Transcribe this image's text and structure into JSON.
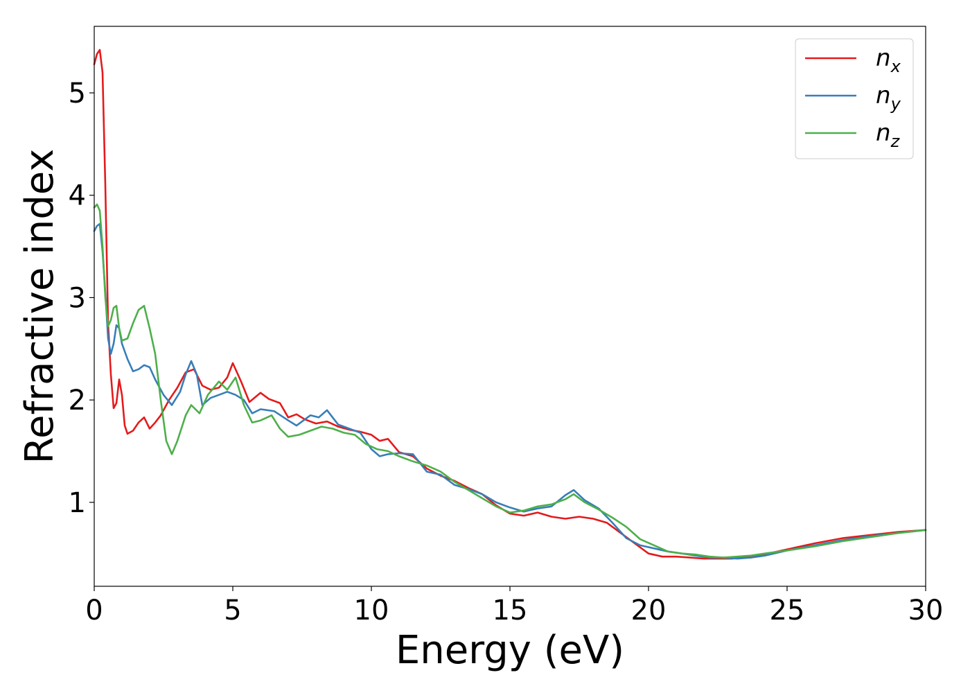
{
  "chart_data": {
    "type": "line",
    "title": "",
    "xlabel": "Energy (eV)",
    "ylabel": "Refractive index",
    "xlim": [
      0,
      30
    ],
    "ylim": [
      0.18,
      5.65
    ],
    "xticks": [
      "0",
      "5",
      "10",
      "15",
      "20",
      "25",
      "30"
    ],
    "yticks": [
      "1",
      "2",
      "3",
      "4",
      "5"
    ],
    "grid": false,
    "legend_position": "top-right",
    "series": [
      {
        "name": "n",
        "subscript": "x",
        "color": "#e41a1c",
        "points": [
          [
            0,
            5.28
          ],
          [
            0.1,
            5.38
          ],
          [
            0.2,
            5.42
          ],
          [
            0.3,
            5.2
          ],
          [
            0.4,
            4.1
          ],
          [
            0.5,
            2.75
          ],
          [
            0.6,
            2.25
          ],
          [
            0.7,
            1.92
          ],
          [
            0.8,
            1.97
          ],
          [
            0.9,
            2.2
          ],
          [
            1.0,
            2.05
          ],
          [
            1.1,
            1.75
          ],
          [
            1.2,
            1.67
          ],
          [
            1.4,
            1.7
          ],
          [
            1.6,
            1.78
          ],
          [
            1.8,
            1.83
          ],
          [
            2.0,
            1.72
          ],
          [
            2.2,
            1.78
          ],
          [
            2.4,
            1.85
          ],
          [
            2.7,
            2.0
          ],
          [
            3.0,
            2.12
          ],
          [
            3.3,
            2.27
          ],
          [
            3.6,
            2.3
          ],
          [
            3.9,
            2.14
          ],
          [
            4.2,
            2.1
          ],
          [
            4.5,
            2.12
          ],
          [
            4.8,
            2.22
          ],
          [
            5.0,
            2.36
          ],
          [
            5.3,
            2.18
          ],
          [
            5.6,
            1.98
          ],
          [
            6.0,
            2.07
          ],
          [
            6.3,
            2.01
          ],
          [
            6.7,
            1.97
          ],
          [
            7.0,
            1.83
          ],
          [
            7.3,
            1.86
          ],
          [
            7.6,
            1.81
          ],
          [
            8.0,
            1.77
          ],
          [
            8.4,
            1.79
          ],
          [
            8.8,
            1.74
          ],
          [
            9.2,
            1.71
          ],
          [
            9.6,
            1.69
          ],
          [
            10.0,
            1.66
          ],
          [
            10.3,
            1.6
          ],
          [
            10.6,
            1.62
          ],
          [
            11.0,
            1.49
          ],
          [
            11.5,
            1.45
          ],
          [
            12.0,
            1.33
          ],
          [
            12.5,
            1.26
          ],
          [
            13.0,
            1.21
          ],
          [
            13.5,
            1.14
          ],
          [
            14.0,
            1.08
          ],
          [
            14.5,
            0.97
          ],
          [
            15.0,
            0.89
          ],
          [
            15.5,
            0.87
          ],
          [
            16.0,
            0.9
          ],
          [
            16.5,
            0.86
          ],
          [
            17.0,
            0.84
          ],
          [
            17.5,
            0.86
          ],
          [
            18.0,
            0.84
          ],
          [
            18.5,
            0.8
          ],
          [
            19.0,
            0.7
          ],
          [
            19.5,
            0.6
          ],
          [
            20.0,
            0.5
          ],
          [
            20.5,
            0.47
          ],
          [
            21.0,
            0.47
          ],
          [
            21.5,
            0.46
          ],
          [
            22.0,
            0.45
          ],
          [
            22.5,
            0.45
          ],
          [
            23.0,
            0.45
          ],
          [
            23.5,
            0.46
          ],
          [
            24.0,
            0.48
          ],
          [
            25.0,
            0.54
          ],
          [
            26.0,
            0.6
          ],
          [
            27.0,
            0.65
          ],
          [
            28.0,
            0.68
          ],
          [
            29.0,
            0.71
          ],
          [
            30.0,
            0.73
          ]
        ]
      },
      {
        "name": "n",
        "subscript": "y",
        "color": "#377eb8",
        "points": [
          [
            0,
            3.65
          ],
          [
            0.1,
            3.7
          ],
          [
            0.2,
            3.72
          ],
          [
            0.3,
            3.45
          ],
          [
            0.4,
            3.05
          ],
          [
            0.5,
            2.6
          ],
          [
            0.6,
            2.45
          ],
          [
            0.7,
            2.55
          ],
          [
            0.8,
            2.73
          ],
          [
            0.9,
            2.7
          ],
          [
            1.0,
            2.55
          ],
          [
            1.2,
            2.4
          ],
          [
            1.4,
            2.28
          ],
          [
            1.6,
            2.3
          ],
          [
            1.8,
            2.34
          ],
          [
            2.0,
            2.32
          ],
          [
            2.2,
            2.2
          ],
          [
            2.5,
            2.05
          ],
          [
            2.8,
            1.95
          ],
          [
            3.1,
            2.08
          ],
          [
            3.3,
            2.25
          ],
          [
            3.5,
            2.38
          ],
          [
            3.7,
            2.25
          ],
          [
            3.9,
            1.95
          ],
          [
            4.2,
            2.02
          ],
          [
            4.5,
            2.05
          ],
          [
            4.8,
            2.08
          ],
          [
            5.1,
            2.05
          ],
          [
            5.4,
            2.0
          ],
          [
            5.7,
            1.87
          ],
          [
            6.0,
            1.91
          ],
          [
            6.5,
            1.89
          ],
          [
            7.0,
            1.8
          ],
          [
            7.3,
            1.75
          ],
          [
            7.8,
            1.85
          ],
          [
            8.1,
            1.83
          ],
          [
            8.4,
            1.9
          ],
          [
            8.8,
            1.76
          ],
          [
            9.2,
            1.72
          ],
          [
            9.6,
            1.68
          ],
          [
            10.0,
            1.52
          ],
          [
            10.3,
            1.45
          ],
          [
            10.6,
            1.47
          ],
          [
            11.0,
            1.48
          ],
          [
            11.5,
            1.47
          ],
          [
            12.0,
            1.3
          ],
          [
            12.5,
            1.27
          ],
          [
            13.0,
            1.17
          ],
          [
            13.5,
            1.13
          ],
          [
            14.0,
            1.08
          ],
          [
            14.5,
            1.0
          ],
          [
            15.0,
            0.95
          ],
          [
            15.5,
            0.91
          ],
          [
            16.0,
            0.94
          ],
          [
            16.5,
            0.96
          ],
          [
            17.0,
            1.07
          ],
          [
            17.3,
            1.12
          ],
          [
            17.7,
            1.02
          ],
          [
            18.2,
            0.94
          ],
          [
            18.7,
            0.8
          ],
          [
            19.2,
            0.65
          ],
          [
            19.7,
            0.58
          ],
          [
            20.2,
            0.55
          ],
          [
            20.7,
            0.52
          ],
          [
            21.2,
            0.5
          ],
          [
            21.7,
            0.48
          ],
          [
            22.2,
            0.46
          ],
          [
            22.7,
            0.46
          ],
          [
            23.2,
            0.45
          ],
          [
            23.7,
            0.46
          ],
          [
            24.2,
            0.48
          ],
          [
            25.0,
            0.53
          ],
          [
            26.0,
            0.58
          ],
          [
            27.0,
            0.63
          ],
          [
            28.0,
            0.67
          ],
          [
            29.0,
            0.7
          ],
          [
            30.0,
            0.73
          ]
        ]
      },
      {
        "name": "n",
        "subscript": "z",
        "color": "#4daf4a",
        "points": [
          [
            0,
            3.88
          ],
          [
            0.1,
            3.91
          ],
          [
            0.2,
            3.85
          ],
          [
            0.3,
            3.5
          ],
          [
            0.4,
            3.0
          ],
          [
            0.5,
            2.72
          ],
          [
            0.6,
            2.78
          ],
          [
            0.7,
            2.9
          ],
          [
            0.8,
            2.92
          ],
          [
            0.9,
            2.7
          ],
          [
            1.0,
            2.58
          ],
          [
            1.2,
            2.6
          ],
          [
            1.4,
            2.75
          ],
          [
            1.6,
            2.88
          ],
          [
            1.8,
            2.92
          ],
          [
            2.0,
            2.7
          ],
          [
            2.2,
            2.45
          ],
          [
            2.4,
            2.0
          ],
          [
            2.6,
            1.6
          ],
          [
            2.8,
            1.47
          ],
          [
            3.0,
            1.6
          ],
          [
            3.3,
            1.85
          ],
          [
            3.5,
            1.95
          ],
          [
            3.8,
            1.87
          ],
          [
            4.1,
            2.05
          ],
          [
            4.5,
            2.18
          ],
          [
            4.8,
            2.1
          ],
          [
            5.1,
            2.22
          ],
          [
            5.4,
            1.95
          ],
          [
            5.7,
            1.78
          ],
          [
            6.0,
            1.8
          ],
          [
            6.4,
            1.85
          ],
          [
            6.7,
            1.72
          ],
          [
            7.0,
            1.64
          ],
          [
            7.4,
            1.66
          ],
          [
            7.8,
            1.7
          ],
          [
            8.2,
            1.74
          ],
          [
            8.6,
            1.72
          ],
          [
            9.0,
            1.68
          ],
          [
            9.4,
            1.66
          ],
          [
            9.8,
            1.57
          ],
          [
            10.2,
            1.52
          ],
          [
            10.6,
            1.5
          ],
          [
            11.0,
            1.45
          ],
          [
            11.5,
            1.4
          ],
          [
            12.0,
            1.36
          ],
          [
            12.5,
            1.3
          ],
          [
            13.0,
            1.2
          ],
          [
            13.5,
            1.12
          ],
          [
            14.0,
            1.04
          ],
          [
            14.5,
            0.96
          ],
          [
            15.0,
            0.9
          ],
          [
            15.5,
            0.92
          ],
          [
            16.0,
            0.96
          ],
          [
            16.5,
            0.98
          ],
          [
            17.0,
            1.03
          ],
          [
            17.3,
            1.08
          ],
          [
            17.7,
            1.0
          ],
          [
            18.2,
            0.93
          ],
          [
            18.7,
            0.85
          ],
          [
            19.2,
            0.76
          ],
          [
            19.7,
            0.64
          ],
          [
            20.2,
            0.58
          ],
          [
            20.7,
            0.52
          ],
          [
            21.2,
            0.5
          ],
          [
            21.7,
            0.49
          ],
          [
            22.2,
            0.47
          ],
          [
            22.7,
            0.46
          ],
          [
            23.2,
            0.47
          ],
          [
            23.7,
            0.48
          ],
          [
            24.2,
            0.5
          ],
          [
            25.0,
            0.53
          ],
          [
            26.0,
            0.57
          ],
          [
            27.0,
            0.62
          ],
          [
            28.0,
            0.66
          ],
          [
            29.0,
            0.7
          ],
          [
            30.0,
            0.73
          ]
        ]
      }
    ]
  }
}
